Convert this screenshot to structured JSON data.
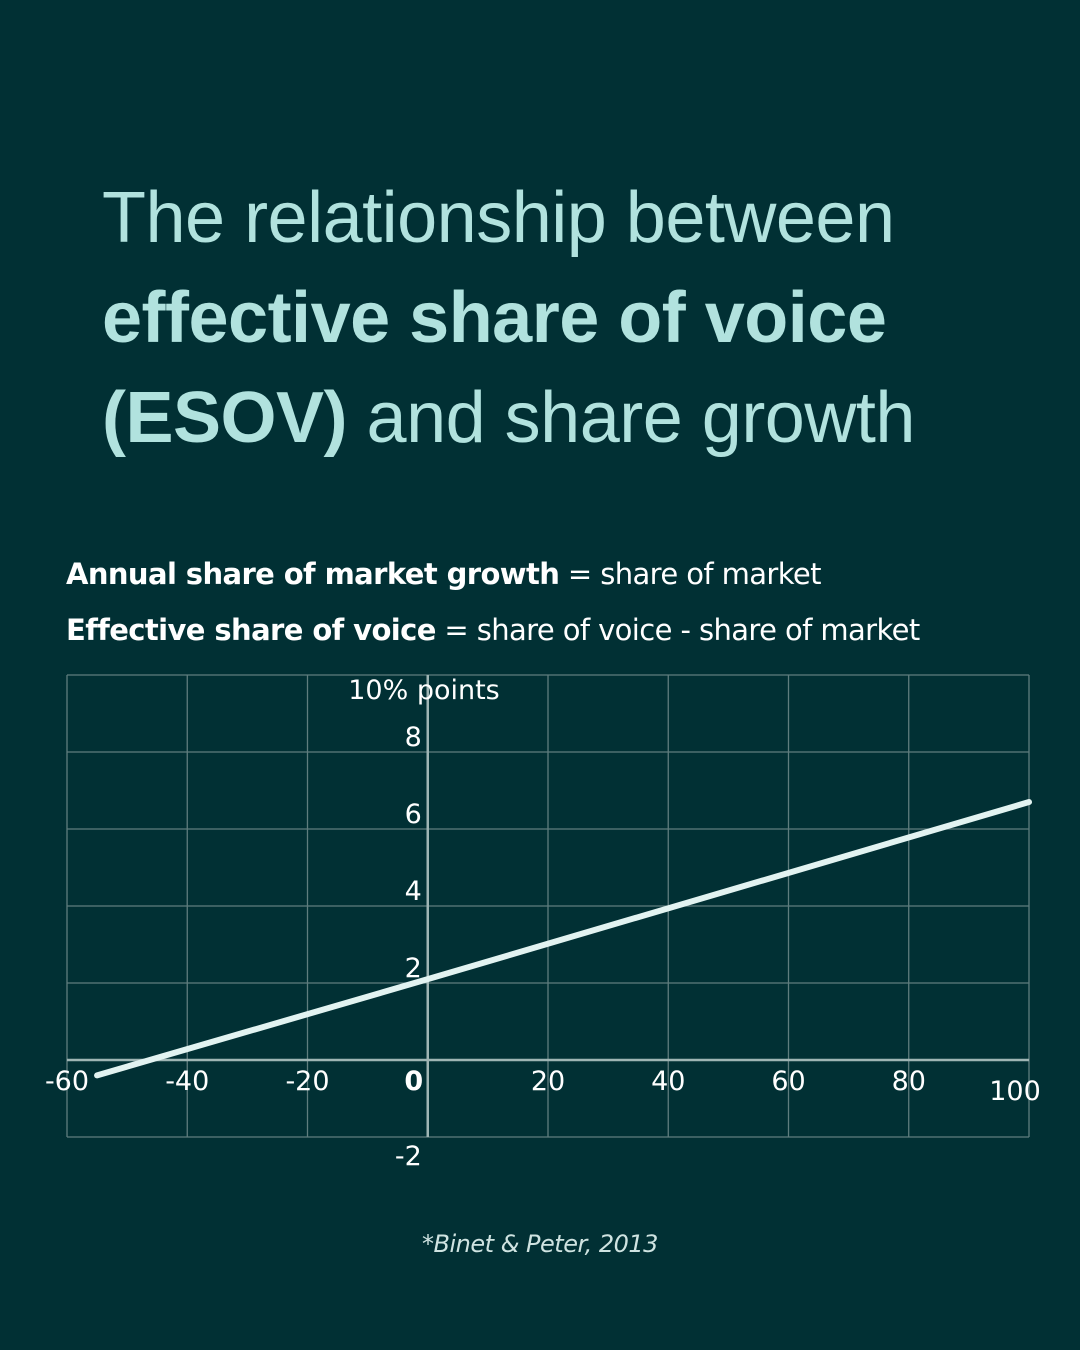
{
  "title": {
    "line1": "The relationship between",
    "line2": "effective share of voice",
    "line3_bold": "(ESOV)",
    "line3_rest": " and share growth"
  },
  "definitions": [
    {
      "term": "Annual share of market growth",
      "definition": " = share of market"
    },
    {
      "term": "Effective share of voice",
      "definition": " = share of voice - share of market"
    }
  ],
  "source": "*Binet & Peter, 2013",
  "colors": {
    "background": "#013034",
    "title": "#b1e2de",
    "line": "#e2f3f1",
    "grid": "#5f7d7e",
    "text": "#ffffff"
  },
  "chart_data": {
    "type": "line",
    "title": "The relationship between effective share of voice (ESOV) and share growth",
    "xlabel": "Effective share of voice",
    "ylabel": "10% points",
    "x_ticks": [
      "-60",
      "-40",
      "-20",
      "0",
      "20",
      "40",
      "60",
      "80",
      "100"
    ],
    "y_ticks": [
      "-2",
      "2",
      "4",
      "6",
      "8"
    ],
    "xlim": [
      -60,
      100
    ],
    "ylim": [
      -2,
      10
    ],
    "grid": true,
    "legend": null,
    "series": [
      {
        "name": "Annual share of market growth",
        "x": [
          -55,
          0,
          100
        ],
        "y": [
          -0.4,
          2.1,
          6.7
        ]
      }
    ],
    "annotation": "*Binet & Peter, 2013"
  }
}
